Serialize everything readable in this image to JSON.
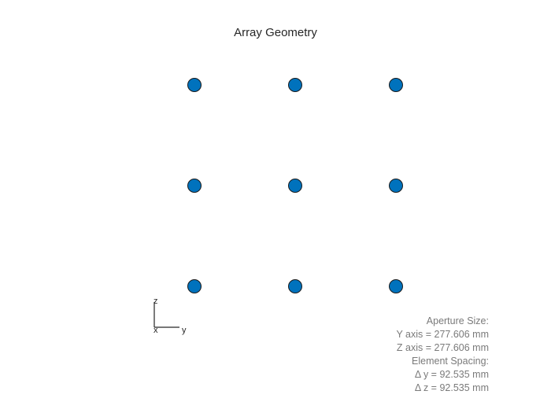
{
  "title": "Array Geometry",
  "element_color": "#0072BD",
  "element_edge_color": "#1a1a1a",
  "chart_data": {
    "type": "scatter",
    "title": "Array Geometry",
    "xlabel": "y",
    "ylabel": "z",
    "grid": false,
    "points_y_mm": [
      -92.535,
      0,
      92.535,
      -92.535,
      0,
      92.535,
      -92.535,
      0,
      92.535
    ],
    "points_z_mm": [
      92.535,
      92.535,
      92.535,
      0,
      0,
      0,
      -92.535,
      -92.535,
      -92.535
    ]
  },
  "orientation_axes": {
    "x": "x",
    "y": "y",
    "z": "z"
  },
  "info": {
    "aperture_heading": "Aperture Size:",
    "y_axis": "Y axis = 277.606 mm",
    "z_axis": "Z axis = 277.606 mm",
    "spacing_heading": "Element Spacing:",
    "dy": "Δ y = 92.535 mm",
    "dz": "Δ z = 92.535 mm"
  }
}
